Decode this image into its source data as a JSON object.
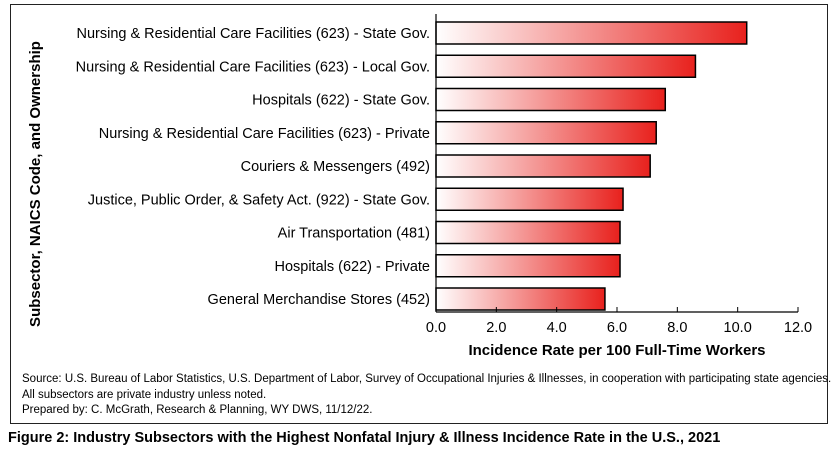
{
  "chart_data": {
    "type": "bar",
    "orientation": "horizontal",
    "categories": [
      "Nursing & Residential Care Facilities (623) - State Gov.",
      "Nursing & Residential Care Facilities (623) - Local Gov.",
      "Hospitals (622) - State Gov.",
      "Nursing & Residential Care Facilities (623) - Private",
      "Couriers & Messengers (492)",
      "Justice, Public Order, & Safety Act. (922) - State Gov.",
      "Air Transportation (481)",
      "Hospitals (622) - Private",
      "General Merchandise Stores (452)"
    ],
    "values": [
      10.3,
      8.6,
      7.6,
      7.3,
      7.1,
      6.2,
      6.1,
      6.1,
      5.6
    ],
    "xlabel": "Incidence Rate per 100 Full-Time Workers",
    "ylabel": "Subsector, NAICS Code, and Ownership",
    "xlim": [
      0,
      12
    ],
    "xticks": [
      "0.0",
      "2.0",
      "4.0",
      "6.0",
      "8.0",
      "10.0",
      "12.0"
    ],
    "grid": false,
    "bar_gradient": [
      "#ffffff",
      "#e8211d"
    ],
    "bar_outline": "#000000"
  },
  "notes": {
    "source": "Source: U.S. Bureau of Labor Statistics, U.S. Department of Labor, Survey of Occupational Injuries & Illnesses, in cooperation with participating state agencies.",
    "subsector_note": "All subsectors are private industry unless noted.",
    "prepared_by": "Prepared by: C. McGrath, Research & Planning, WY DWS, 11/12/22."
  },
  "caption": "Figure 2: Industry Subsectors with the Highest Nonfatal Injury & Illness Incidence Rate in the U.S., 2021"
}
